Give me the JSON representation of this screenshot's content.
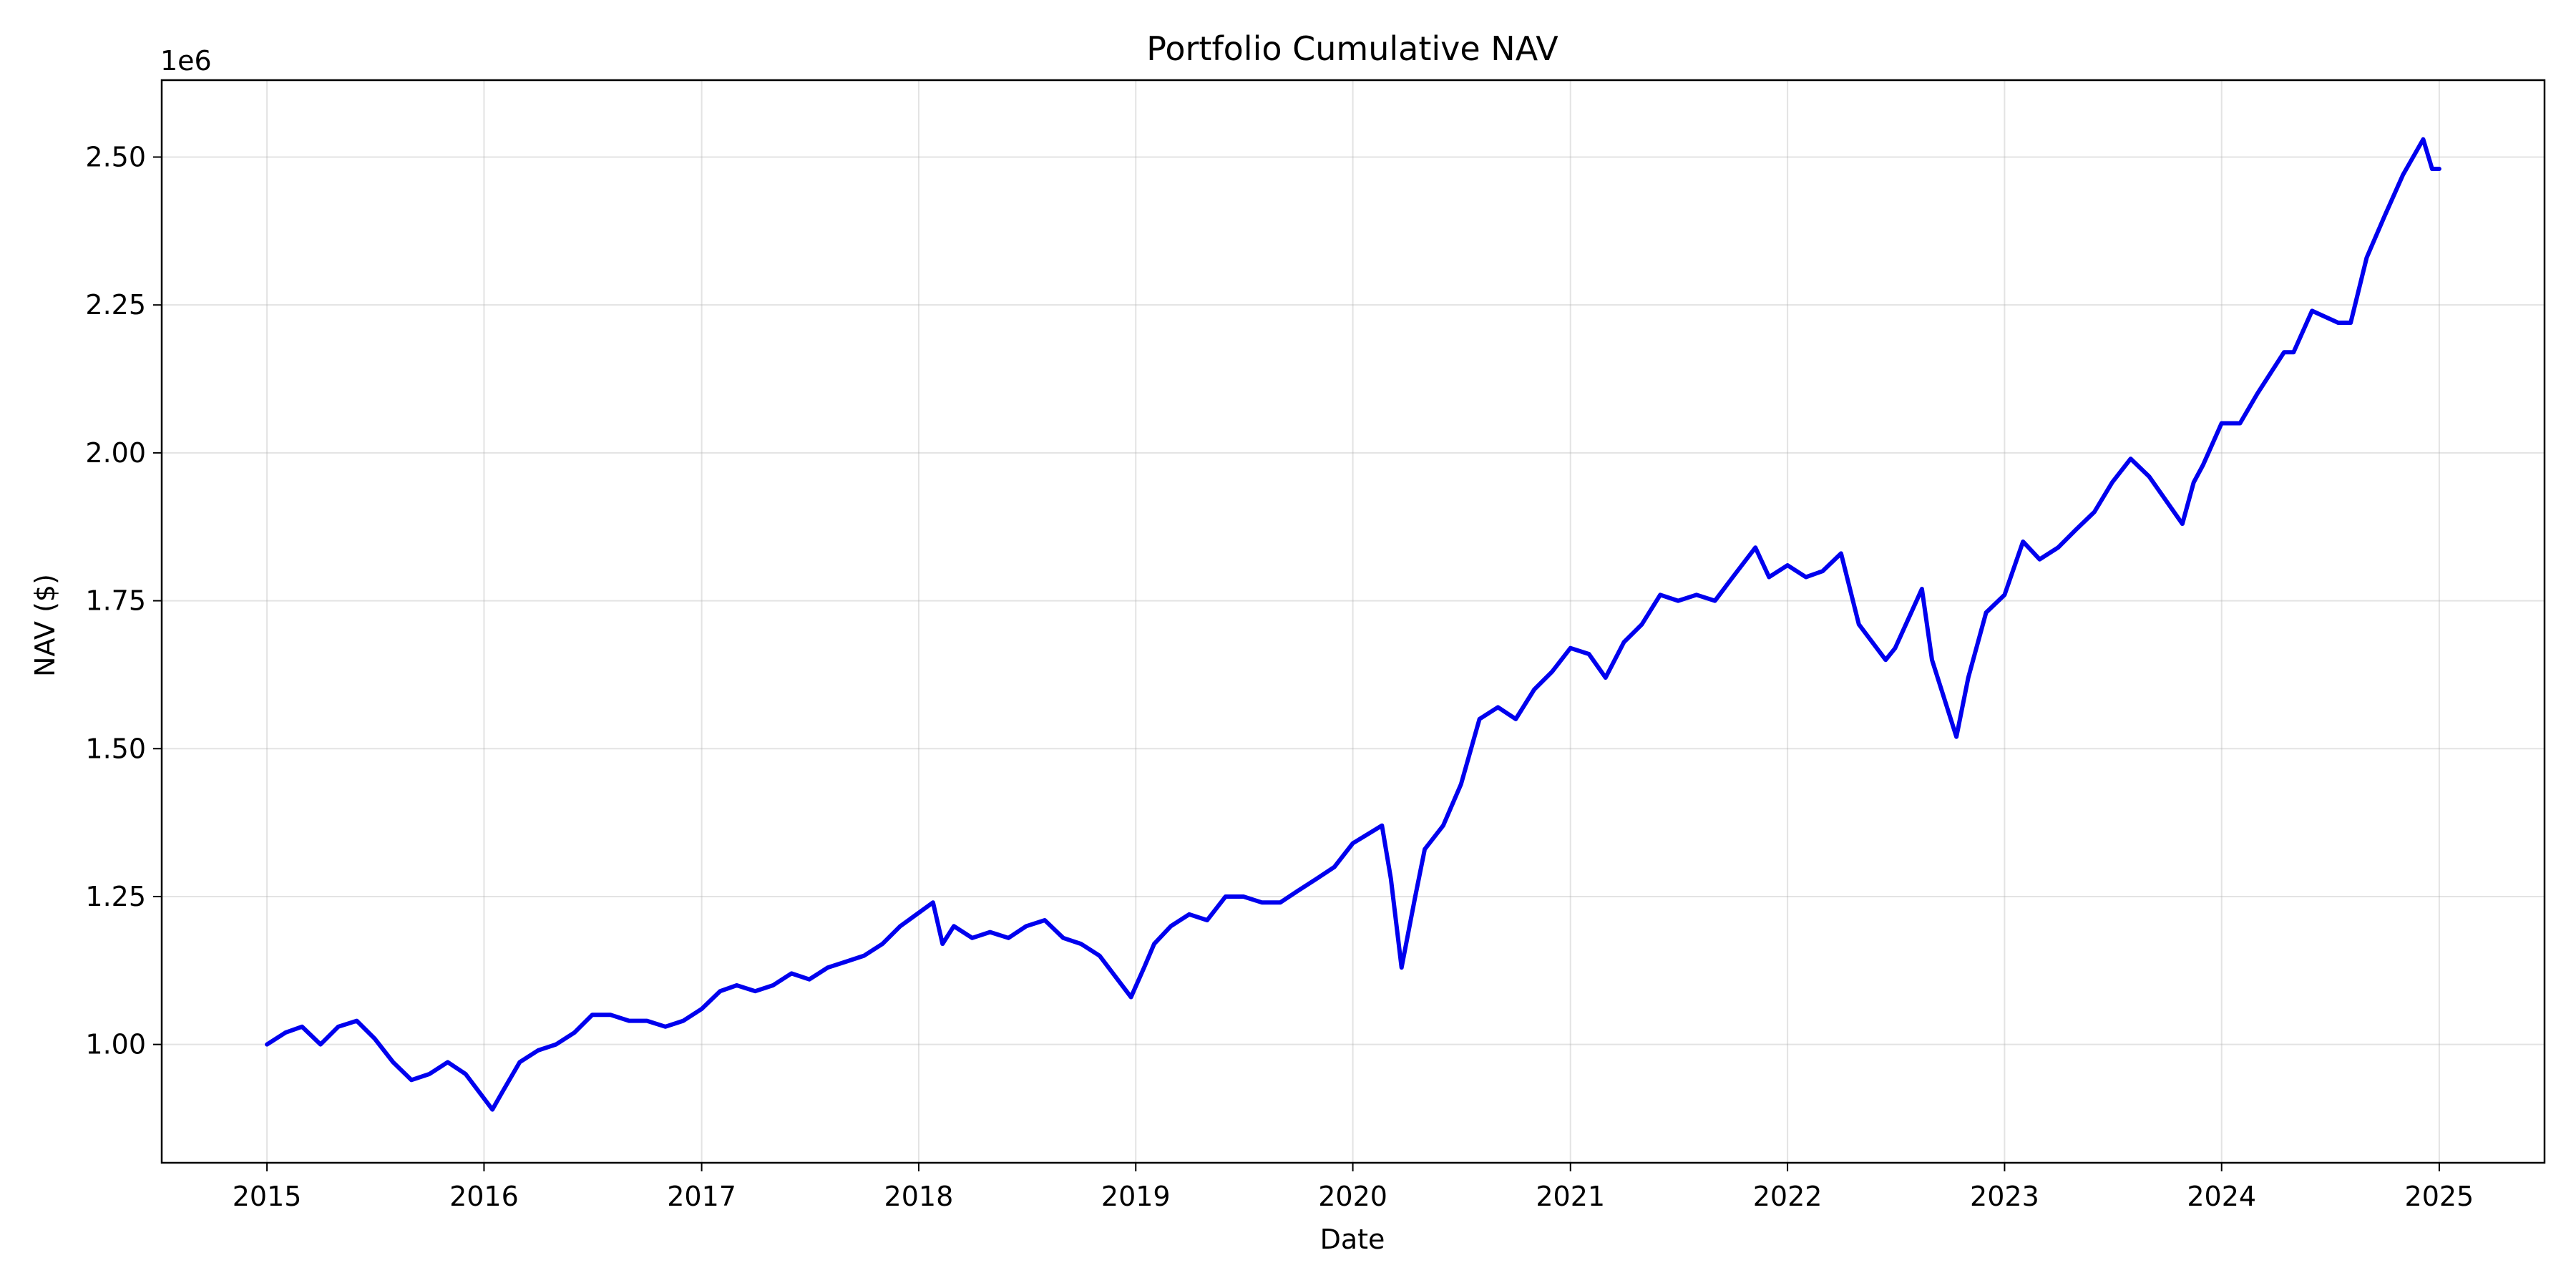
{
  "chart_data": {
    "type": "line",
    "title": "Portfolio Cumulative NAV",
    "xlabel": "Date",
    "ylabel": "NAV ($)",
    "y_offset_label": "1e6",
    "xlim": [
      "2014-07-08",
      "2025-06-27"
    ],
    "ylim": [
      0.8,
      2.63
    ],
    "x_ticks": [
      "2015",
      "2016",
      "2017",
      "2018",
      "2019",
      "2020",
      "2021",
      "2022",
      "2023",
      "2024",
      "2025"
    ],
    "y_ticks": [
      "1.00",
      "1.25",
      "1.50",
      "1.75",
      "2.00",
      "2.25",
      "2.50"
    ],
    "grid": true,
    "line_color": "#0000ee",
    "series": [
      {
        "x": [
          "2015-01-01",
          "2015-02-01",
          "2015-03-01",
          "2015-04-01",
          "2015-05-01",
          "2015-06-01",
          "2015-07-01",
          "2015-08-01",
          "2015-09-01",
          "2015-10-01",
          "2015-11-01",
          "2015-12-01",
          "2016-01-15",
          "2016-02-01",
          "2016-03-01",
          "2016-04-01",
          "2016-05-01",
          "2016-06-01",
          "2016-07-01",
          "2016-08-01",
          "2016-09-01",
          "2016-10-01",
          "2016-11-01",
          "2016-12-01",
          "2017-01-01",
          "2017-02-01",
          "2017-03-01",
          "2017-04-01",
          "2017-05-01",
          "2017-06-01",
          "2017-07-01",
          "2017-08-01",
          "2017-09-01",
          "2017-10-01",
          "2017-11-01",
          "2017-12-01",
          "2018-01-25",
          "2018-02-10",
          "2018-03-01",
          "2018-04-01",
          "2018-05-01",
          "2018-06-01",
          "2018-07-01",
          "2018-08-01",
          "2018-09-01",
          "2018-10-01",
          "2018-11-01",
          "2018-12-24",
          "2019-01-15",
          "2019-02-01",
          "2019-03-01",
          "2019-04-01",
          "2019-05-01",
          "2019-06-01",
          "2019-07-01",
          "2019-08-01",
          "2019-09-01",
          "2019-10-01",
          "2019-11-01",
          "2019-12-01",
          "2020-01-01",
          "2020-02-19",
          "2020-03-05",
          "2020-03-23",
          "2020-04-15",
          "2020-05-01",
          "2020-06-01",
          "2020-07-01",
          "2020-08-01",
          "2020-09-01",
          "2020-10-01",
          "2020-11-01",
          "2020-12-01",
          "2021-01-01",
          "2021-02-01",
          "2021-03-01",
          "2021-04-01",
          "2021-05-01",
          "2021-06-01",
          "2021-07-01",
          "2021-08-01",
          "2021-09-01",
          "2021-10-01",
          "2021-11-08",
          "2021-12-01",
          "2022-01-01",
          "2022-02-01",
          "2022-03-01",
          "2022-04-01",
          "2022-05-01",
          "2022-06-15",
          "2022-07-01",
          "2022-08-15",
          "2022-09-01",
          "2022-10-12",
          "2022-11-01",
          "2022-12-01",
          "2023-01-01",
          "2023-02-01",
          "2023-03-01",
          "2023-04-01",
          "2023-05-01",
          "2023-06-01",
          "2023-07-01",
          "2023-08-01",
          "2023-09-01",
          "2023-10-27",
          "2023-11-15",
          "2023-12-01",
          "2024-01-01",
          "2024-02-01",
          "2024-03-01",
          "2024-04-15",
          "2024-05-01",
          "2024-06-01",
          "2024-07-15",
          "2024-08-05",
          "2024-09-01",
          "2024-10-01",
          "2024-11-01",
          "2024-12-05",
          "2024-12-20",
          "2025-01-01"
        ],
        "y": [
          1.0,
          1.02,
          1.03,
          1.0,
          1.03,
          1.04,
          1.01,
          0.97,
          0.94,
          0.95,
          0.97,
          0.95,
          0.89,
          0.92,
          0.97,
          0.99,
          1.0,
          1.02,
          1.05,
          1.05,
          1.04,
          1.04,
          1.03,
          1.04,
          1.06,
          1.09,
          1.1,
          1.09,
          1.1,
          1.12,
          1.11,
          1.13,
          1.14,
          1.15,
          1.17,
          1.2,
          1.24,
          1.17,
          1.2,
          1.18,
          1.19,
          1.18,
          1.2,
          1.21,
          1.18,
          1.17,
          1.15,
          1.08,
          1.13,
          1.17,
          1.2,
          1.22,
          1.21,
          1.25,
          1.25,
          1.24,
          1.24,
          1.26,
          1.28,
          1.3,
          1.34,
          1.37,
          1.28,
          1.13,
          1.25,
          1.33,
          1.37,
          1.44,
          1.55,
          1.57,
          1.55,
          1.6,
          1.63,
          1.67,
          1.66,
          1.62,
          1.68,
          1.71,
          1.76,
          1.75,
          1.76,
          1.75,
          1.79,
          1.84,
          1.79,
          1.81,
          1.79,
          1.8,
          1.83,
          1.71,
          1.65,
          1.67,
          1.77,
          1.65,
          1.52,
          1.62,
          1.73,
          1.76,
          1.85,
          1.82,
          1.84,
          1.87,
          1.9,
          1.95,
          1.99,
          1.96,
          1.88,
          1.95,
          1.98,
          2.05,
          2.05,
          2.1,
          2.17,
          2.17,
          2.24,
          2.22,
          2.22,
          2.33,
          2.4,
          2.47,
          2.53,
          2.48,
          2.48
        ]
      }
    ]
  }
}
